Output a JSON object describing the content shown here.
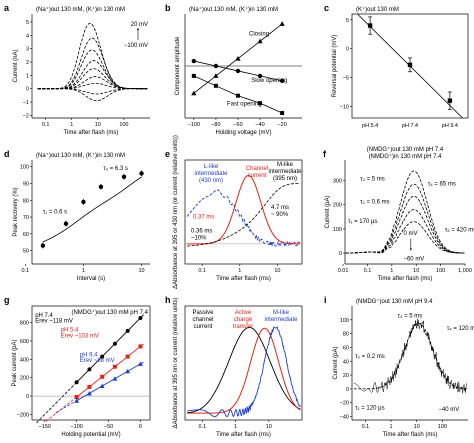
{
  "chart_data": [
    {
      "id": "a",
      "type": "line",
      "letter": "a",
      "title": "(Na⁺)out 130 mM, (K⁺)in 130 mM",
      "xlabel": "Time after flash (ms)",
      "ylabel": "Current (nA)",
      "xscale": "log",
      "xlim": [
        0.03,
        1000
      ],
      "ylim": [
        -2.2,
        5.6
      ],
      "xticks": [
        {
          "v": 0.1,
          "t": "0.1"
        },
        {
          "v": 1,
          "t": "1"
        },
        {
          "v": 10,
          "t": "10"
        },
        {
          "v": 100,
          "t": "100"
        }
      ],
      "yticks": [
        -2,
        -1,
        0,
        1,
        2,
        3,
        4,
        5
      ],
      "annotations": [
        "20 mV",
        "−100 mV"
      ],
      "series": [
        {
          "peak_time": 5,
          "peak": 4.9
        },
        {
          "peak_time": 6,
          "peak": 3.8
        },
        {
          "peak_time": 6,
          "peak": 2.9
        },
        {
          "peak_time": 7,
          "peak": 2.1
        },
        {
          "peak_time": 7,
          "peak": 1.5
        },
        {
          "peak_time": 8,
          "peak": 0.9
        },
        {
          "peak_time": 8,
          "peak": 0.4
        },
        {
          "peak_time": 9,
          "peak": -0.4
        },
        {
          "peak_time": 9,
          "peak": -0.9
        }
      ]
    },
    {
      "id": "b",
      "type": "line",
      "letter": "b",
      "title": "(Na⁺)out 130 mM, (K⁺)in 130 mM",
      "xlabel": "Holding voltage (mV)",
      "ylabel": "Component amplitude",
      "xlim": [
        -108,
        -2
      ],
      "ylim": [
        -1.05,
        1.05
      ],
      "xticks": [
        -100,
        -80,
        -60,
        -40,
        -20
      ],
      "series": [
        {
          "name": "Closing",
          "marker": "triangle",
          "x": [
            -100,
            -80,
            -60,
            -40,
            -20
          ],
          "y": [
            -0.55,
            -0.2,
            0.15,
            0.5,
            0.85
          ]
        },
        {
          "name": "Slow opening",
          "marker": "circle",
          "x": [
            -100,
            -80,
            -60,
            -40,
            -20
          ],
          "y": [
            0.1,
            0.0,
            -0.1,
            -0.2,
            -0.3
          ]
        },
        {
          "name": "Fast opening",
          "marker": "square",
          "x": [
            -100,
            -80,
            -60,
            -40,
            -20
          ],
          "y": [
            -0.2,
            -0.4,
            -0.6,
            -0.75,
            -0.95
          ]
        }
      ]
    },
    {
      "id": "c",
      "type": "scatter",
      "letter": "c",
      "title": "(K⁺)out 130 mM",
      "xlabel": "",
      "ylabel": "Reversal potential (mV)",
      "xlim": [
        0,
        3.2
      ],
      "ylim": [
        -12,
        6
      ],
      "categories": [
        "pH 5.4",
        "pH 7.4",
        "pH 9.4"
      ],
      "x": [
        0.5,
        1.6,
        2.7
      ],
      "y": [
        4,
        -2.8,
        -9
      ],
      "err": [
        1.5,
        1.2,
        1.5
      ],
      "yticks": [
        -10,
        -5,
        0,
        5
      ]
    },
    {
      "id": "d",
      "type": "line",
      "letter": "d",
      "title": "(Na⁺)out 130 mM, (K⁺)in 130 mM",
      "xlabel": "Interval (s)",
      "ylabel": "Peak recovery (%)",
      "xscale": "log",
      "xlim": [
        0.13,
        14
      ],
      "ylim": [
        42,
        104
      ],
      "xticks": [
        {
          "v": 0.1,
          "t": "0.1"
        },
        {
          "v": 1,
          "t": "1"
        },
        {
          "v": 10,
          "t": "10"
        }
      ],
      "yticks": [
        50,
        60,
        70,
        80,
        90,
        100
      ],
      "x": [
        0.2,
        0.5,
        1,
        2,
        5,
        10
      ],
      "y": [
        53,
        66,
        79,
        88,
        94,
        96
      ],
      "annotations": [
        "τ₁ = 0.6 s",
        "τ₂ = 6.3 s"
      ]
    },
    {
      "id": "e",
      "type": "line",
      "letter": "e",
      "xlabel": "Time after flash (ms)",
      "ylabel": "ΔAbsorbance at 395 or 430 nm (or current (relative units))",
      "xscale": "log",
      "xlim": [
        0.035,
        45
      ],
      "ylim": [
        -0.3,
        1.25
      ],
      "xticks": [
        {
          "v": 0.1,
          "t": "0.1"
        },
        {
          "v": 1,
          "t": "1"
        },
        {
          "v": 10,
          "t": "10"
        }
      ],
      "labels": [
        "L-like intermediate (430 nm)",
        "Channel current",
        "M-like intermediate (395 nm)"
      ],
      "annotations": [
        "0.37 ms",
        "0.36 ms ~10%",
        "4.7 ms ~ 90%"
      ]
    },
    {
      "id": "f",
      "type": "line",
      "letter": "f",
      "title": "(NMDG⁺)out 130 mM pH 7.4",
      "title2": "(NMDG⁺)in 130 mM pH 7.4",
      "xlabel": "Time after flash (ms)",
      "ylabel": "Current (pA)",
      "xscale": "log",
      "xlim": [
        0.012,
        1000
      ],
      "ylim": [
        -45,
        385
      ],
      "xticks": [
        {
          "v": 0.01,
          "t": "0.01"
        },
        {
          "v": 0.1,
          "t": "0.1"
        },
        {
          "v": 1,
          "t": "1"
        },
        {
          "v": 10,
          "t": "10"
        },
        {
          "v": 100,
          "t": "100"
        },
        {
          "v": 1000,
          "t": "1,000"
        }
      ],
      "yticks": [
        0,
        100,
        200,
        300
      ],
      "series": [
        {
          "peak": 340
        },
        {
          "peak": 285
        },
        {
          "peak": 235
        },
        {
          "peak": 180
        },
        {
          "peak": 130
        }
      ],
      "annotations": [
        "τ₃ = 5 ms",
        "τ₂ = 0.6 ms",
        "τ₁ = 170 μs",
        "τ₄ = 65 ms",
        "τ₅ = 420 ms",
        "0 mV",
        "−60 mV"
      ]
    },
    {
      "id": "g",
      "type": "line",
      "letter": "g",
      "title": "(NMDG⁺)out 130 mM pH 7.4",
      "xlabel": "Holding potential (mV)",
      "ylabel": "Peak current (pA)",
      "xlim": [
        -170,
        15
      ],
      "ylim": [
        -260,
        980
      ],
      "xticks": [
        -150,
        -100,
        -50,
        0
      ],
      "yticks": [
        -200,
        0,
        200,
        400,
        600,
        800
      ],
      "series": [
        {
          "name": "pH 7.4",
          "color": "#000000",
          "x": [
            -100,
            -80,
            -60,
            -40,
            -20,
            0
          ],
          "y": [
            150,
            290,
            430,
            570,
            710,
            850
          ],
          "erev": -118,
          "erev_label": "Erev ~118 mV"
        },
        {
          "name": "pH 5.4",
          "color": "#e2231a",
          "x": [
            -100,
            -80,
            -60,
            -40,
            -20,
            0
          ],
          "y": [
            -10,
            100,
            210,
            320,
            430,
            540
          ],
          "erev": -103,
          "erev_label": "Erev ~103 mV"
        },
        {
          "name": "pH 9.4",
          "color": "#1f3bcc",
          "x": [
            -100,
            -80,
            -60,
            -40,
            -20,
            0
          ],
          "y": [
            -50,
            30,
            110,
            190,
            270,
            350
          ],
          "erev": -88,
          "erev_label": "Erev ~88 mV"
        }
      ]
    },
    {
      "id": "h",
      "type": "line",
      "letter": "h",
      "xlabel": "Time after flash (ms)",
      "ylabel": "ΔAbsorbance at 395 nm or current (relative units)",
      "xscale": "log",
      "xlim": [
        0.03,
        100
      ],
      "ylim": [
        -0.08,
        1.25
      ],
      "xticks": [
        {
          "v": 0.1,
          "t": "0.1"
        },
        {
          "v": 1,
          "t": "1"
        },
        {
          "v": 10,
          "t": "10"
        }
      ],
      "labels": [
        "Passive channel current",
        "Active charge transfer",
        "M-like intermediate"
      ]
    },
    {
      "id": "i",
      "type": "line",
      "letter": "i",
      "title": "(NMDG⁺)out 130 mM pH 9.4",
      "xlabel": "Time after flash (ms)",
      "ylabel": "Current (pA)",
      "xscale": "log",
      "xlim": [
        0.03,
        1000
      ],
      "ylim": [
        -45,
        120
      ],
      "xticks": [
        {
          "v": 0.1,
          "t": "0.1"
        },
        {
          "v": 1,
          "t": "1"
        },
        {
          "v": 10,
          "t": "10"
        },
        {
          "v": 100,
          "t": "100"
        }
      ],
      "yticks": [
        -40,
        -20,
        0,
        20,
        40,
        60,
        80,
        100
      ],
      "annotations": [
        "τ₃ = 5 ms",
        "τ₂ = 0.2 ms",
        "τ₄ = 120 ms",
        "τ₁ = 120 μs",
        "−40 mV"
      ]
    }
  ]
}
